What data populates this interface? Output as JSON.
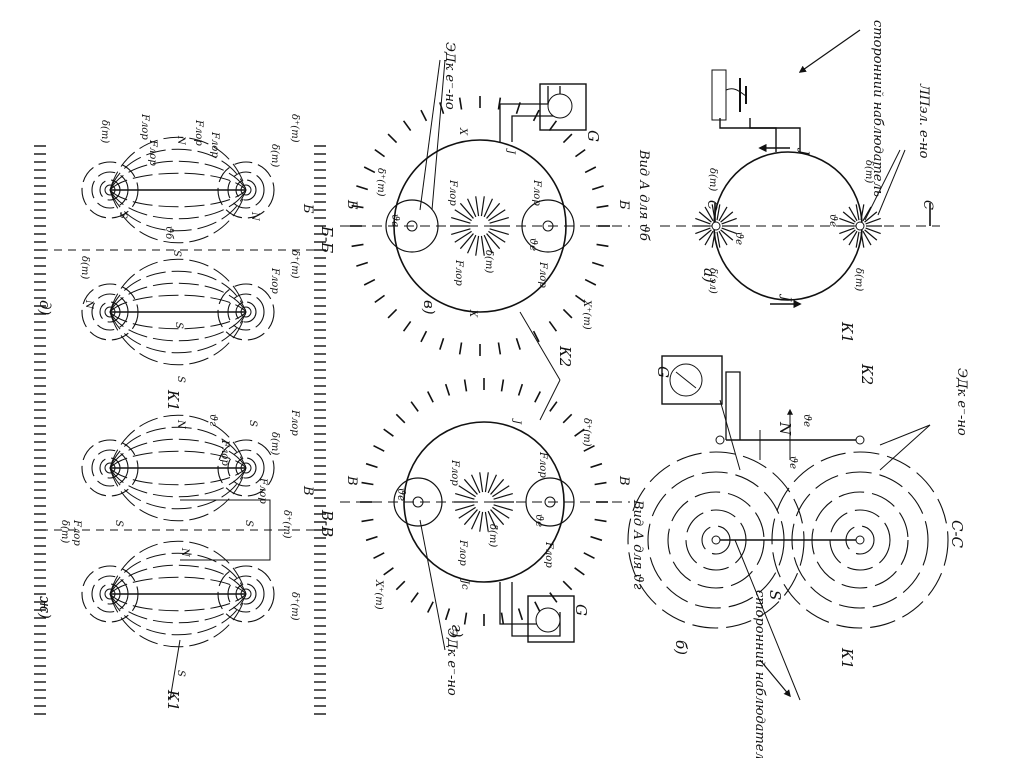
{
  "panel_a": {
    "letter": "а)",
    "observer": "сторонний наблюдатель",
    "eds": "ЛПэл. е-но",
    "ring": "К1",
    "j_top": "J",
    "j_bottom": "J",
    "section_mark": "С",
    "ve1": "ϑe",
    "ve2": "ϑe",
    "delta1": "δ(m)",
    "delta2": "δ(m)",
    "delta3": "δ(эл)",
    "delta4": "δ(m)"
  },
  "panel_b": {
    "letter": "б)",
    "observer": "сторонний наблюдатель",
    "section_title": "С-С",
    "eds": "ЭДк е⁻-но",
    "ring1": "К1",
    "ring2": "К2",
    "n_pole": "N",
    "s_pole": "S",
    "gauge": "G",
    "ve": "ϑe",
    "ve2": "ϑe"
  },
  "panel_v": {
    "letter": "в)",
    "view": "Вид А для ϑб",
    "section": "Б",
    "eds": "ЭДк е⁻-но",
    "gauge": "G",
    "labels": [
      "Fлор",
      "Fлор",
      "Fлор",
      "Fлор",
      "ϑe",
      "ϑe",
      "δ(m)",
      "δ⁺(m)",
      "X⁺(m)",
      "X",
      "X",
      "J"
    ]
  },
  "panel_g": {
    "letter": "г)",
    "view": "Вид А для ϑг",
    "section": "В",
    "ring": "К2",
    "eds": "ЭДк е⁻-но",
    "gauge": "G",
    "labels": [
      "Fлор",
      "Fлор",
      "Fлор",
      "Fлор",
      "ϑe",
      "ϑe",
      "δ(m)",
      "δ⁺(m)",
      "X⁺(m)",
      "Jс",
      "J"
    ]
  },
  "panel_d": {
    "letter": "д)",
    "section": "Б-Б",
    "section_mark": "Б",
    "poles": [
      "N",
      "S",
      "N",
      "S",
      "N",
      "S",
      "S"
    ],
    "labels": [
      "δ⁺(m)",
      "δ(m)",
      "Fлор",
      "Fлор",
      "Fлор",
      "Fлор",
      "δ(m)",
      "ϑб",
      "δ⁺(m)",
      "δ(m)",
      "Fлор"
    ]
  },
  "panel_zh": {
    "letter": "ж)",
    "section": "В-В",
    "section_mark": "В",
    "ring": "К1",
    "poles": [
      "S",
      "N",
      "S",
      "N",
      "S",
      "S"
    ],
    "labels": [
      "Fлор",
      "Fлор",
      "ϑг",
      "δ⁺(m)",
      "δ(m)",
      "δ⁺(m)",
      "Fлор",
      "δ(m)",
      "Fлор"
    ]
  },
  "panel_e": {
    "ring": "К1"
  }
}
